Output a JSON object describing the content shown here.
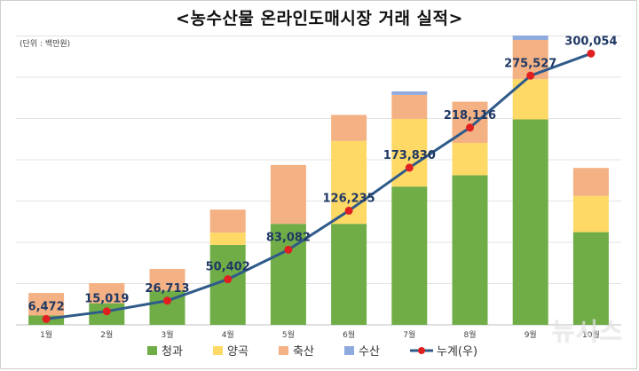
{
  "title": "<농수산물 온라인도매시장 거래 실적>",
  "unit_note": "(단위 : 백만원)",
  "watermark": "뉴시스",
  "colors": {
    "fruit": "#70ad47",
    "grain": "#ffd966",
    "livestock": "#f4b183",
    "fishery": "#8faadc",
    "cumulative_line": "#2f5b8a",
    "cumulative_marker": "#e02020",
    "label_text": "#1f3864"
  },
  "chart_data": {
    "type": "bar",
    "stacked": true,
    "categories": [
      "1월",
      "2월",
      "3월",
      "4월",
      "5월",
      "6월",
      "7월",
      "8월",
      "9월",
      "10월"
    ],
    "ylim_left": [
      0,
      59000
    ],
    "ylim_right": [
      0,
      320000
    ],
    "grid": true,
    "legend_position": "bottom",
    "series": [
      {
        "name": "청과",
        "key": "fruit",
        "values": [
          1900,
          4400,
          7000,
          16300,
          20600,
          20600,
          28200,
          30500,
          41900,
          18900
        ]
      },
      {
        "name": "양곡",
        "key": "grain",
        "values": [
          0,
          0,
          0,
          2500,
          0,
          16900,
          13800,
          6600,
          8200,
          7400
        ]
      },
      {
        "name": "축산",
        "key": "livestock",
        "values": [
          4600,
          4100,
          4400,
          4700,
          12000,
          5300,
          4900,
          8400,
          8000,
          5700
        ]
      },
      {
        "name": "수산",
        "key": "fishery",
        "values": [
          0,
          0,
          0,
          0,
          0,
          0,
          700,
          0,
          900,
          0
        ]
      }
    ],
    "line": {
      "name": "누계(우)",
      "axis": "right",
      "values": [
        6472,
        15019,
        26713,
        50402,
        83082,
        126235,
        173830,
        218116,
        275527,
        300054
      ],
      "labels": [
        "6,472",
        "15,019",
        "26,713",
        "50,402",
        "83,082",
        "126,235",
        "173,830",
        "218,116",
        "275,527",
        "300,054"
      ]
    }
  }
}
